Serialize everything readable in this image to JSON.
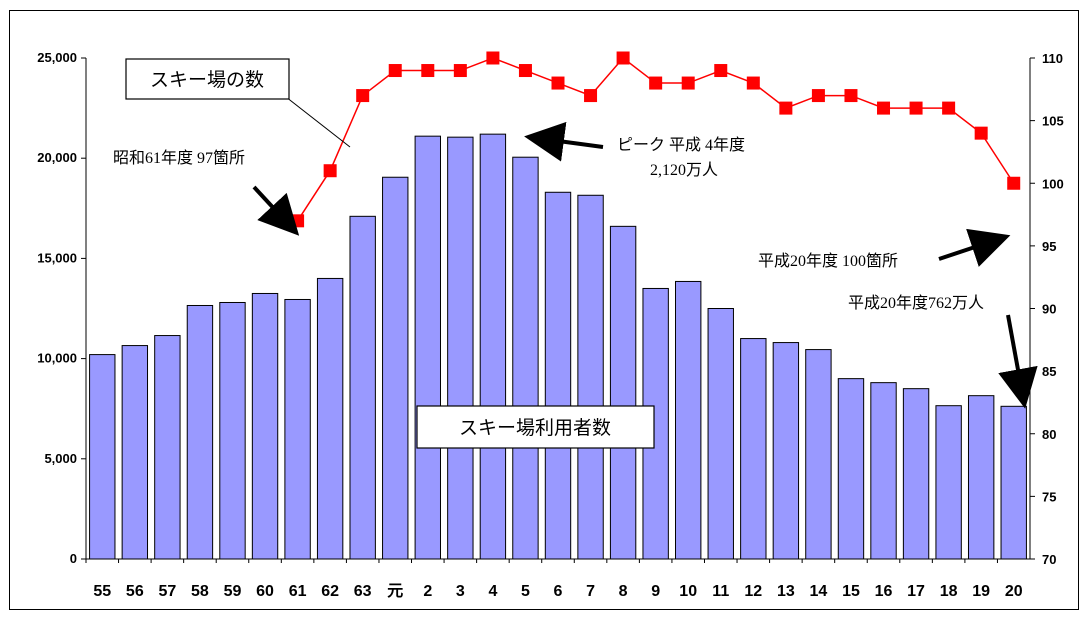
{
  "chart_data": {
    "type": "bar+line",
    "categories": [
      "55",
      "56",
      "57",
      "58",
      "59",
      "60",
      "61",
      "62",
      "63",
      "元",
      "2",
      "3",
      "4",
      "5",
      "6",
      "7",
      "8",
      "9",
      "10",
      "11",
      "12",
      "13",
      "14",
      "15",
      "16",
      "17",
      "18",
      "19",
      "20"
    ],
    "series": [
      {
        "name": "スキー場利用者数",
        "type": "bar",
        "axis": "left",
        "color": "#9999ff",
        "values": [
          10200,
          10650,
          11150,
          12650,
          12800,
          13250,
          12950,
          14000,
          17100,
          19050,
          21100,
          21050,
          21200,
          20050,
          18300,
          18150,
          16600,
          13500,
          13850,
          12500,
          11000,
          10800,
          10450,
          9000,
          8800,
          8500,
          7650,
          8150,
          7620
        ]
      },
      {
        "name": "スキー場の数",
        "type": "line",
        "axis": "right",
        "color": "#ff0000",
        "marker": "square",
        "values": [
          null,
          null,
          null,
          null,
          null,
          null,
          97,
          101,
          107,
          109,
          109,
          109,
          110,
          109,
          108,
          107,
          110,
          108,
          108,
          109,
          108,
          106,
          107,
          107,
          106,
          106,
          106,
          104,
          100
        ]
      }
    ],
    "y_left": {
      "min": 0,
      "max": 25000,
      "ticks": [
        "0",
        "5,000",
        "10,000",
        "15,000",
        "20,000",
        "25,000"
      ]
    },
    "y_right": {
      "min": 70,
      "max": 110,
      "ticks": [
        "70",
        "75",
        "80",
        "85",
        "90",
        "95",
        "100",
        "105",
        "110"
      ]
    },
    "grid": false,
    "annotations": {
      "line_label": "スキー場の数",
      "bar_label": "スキー場利用者数",
      "low_label": "昭和61年度 97箇所",
      "peak_label_1": "ピーク 平成 4年度",
      "peak_label_2": "2,120万人",
      "end_count_label": "平成20年度 100箇所",
      "end_users_label": "平成20年度762万人"
    }
  }
}
